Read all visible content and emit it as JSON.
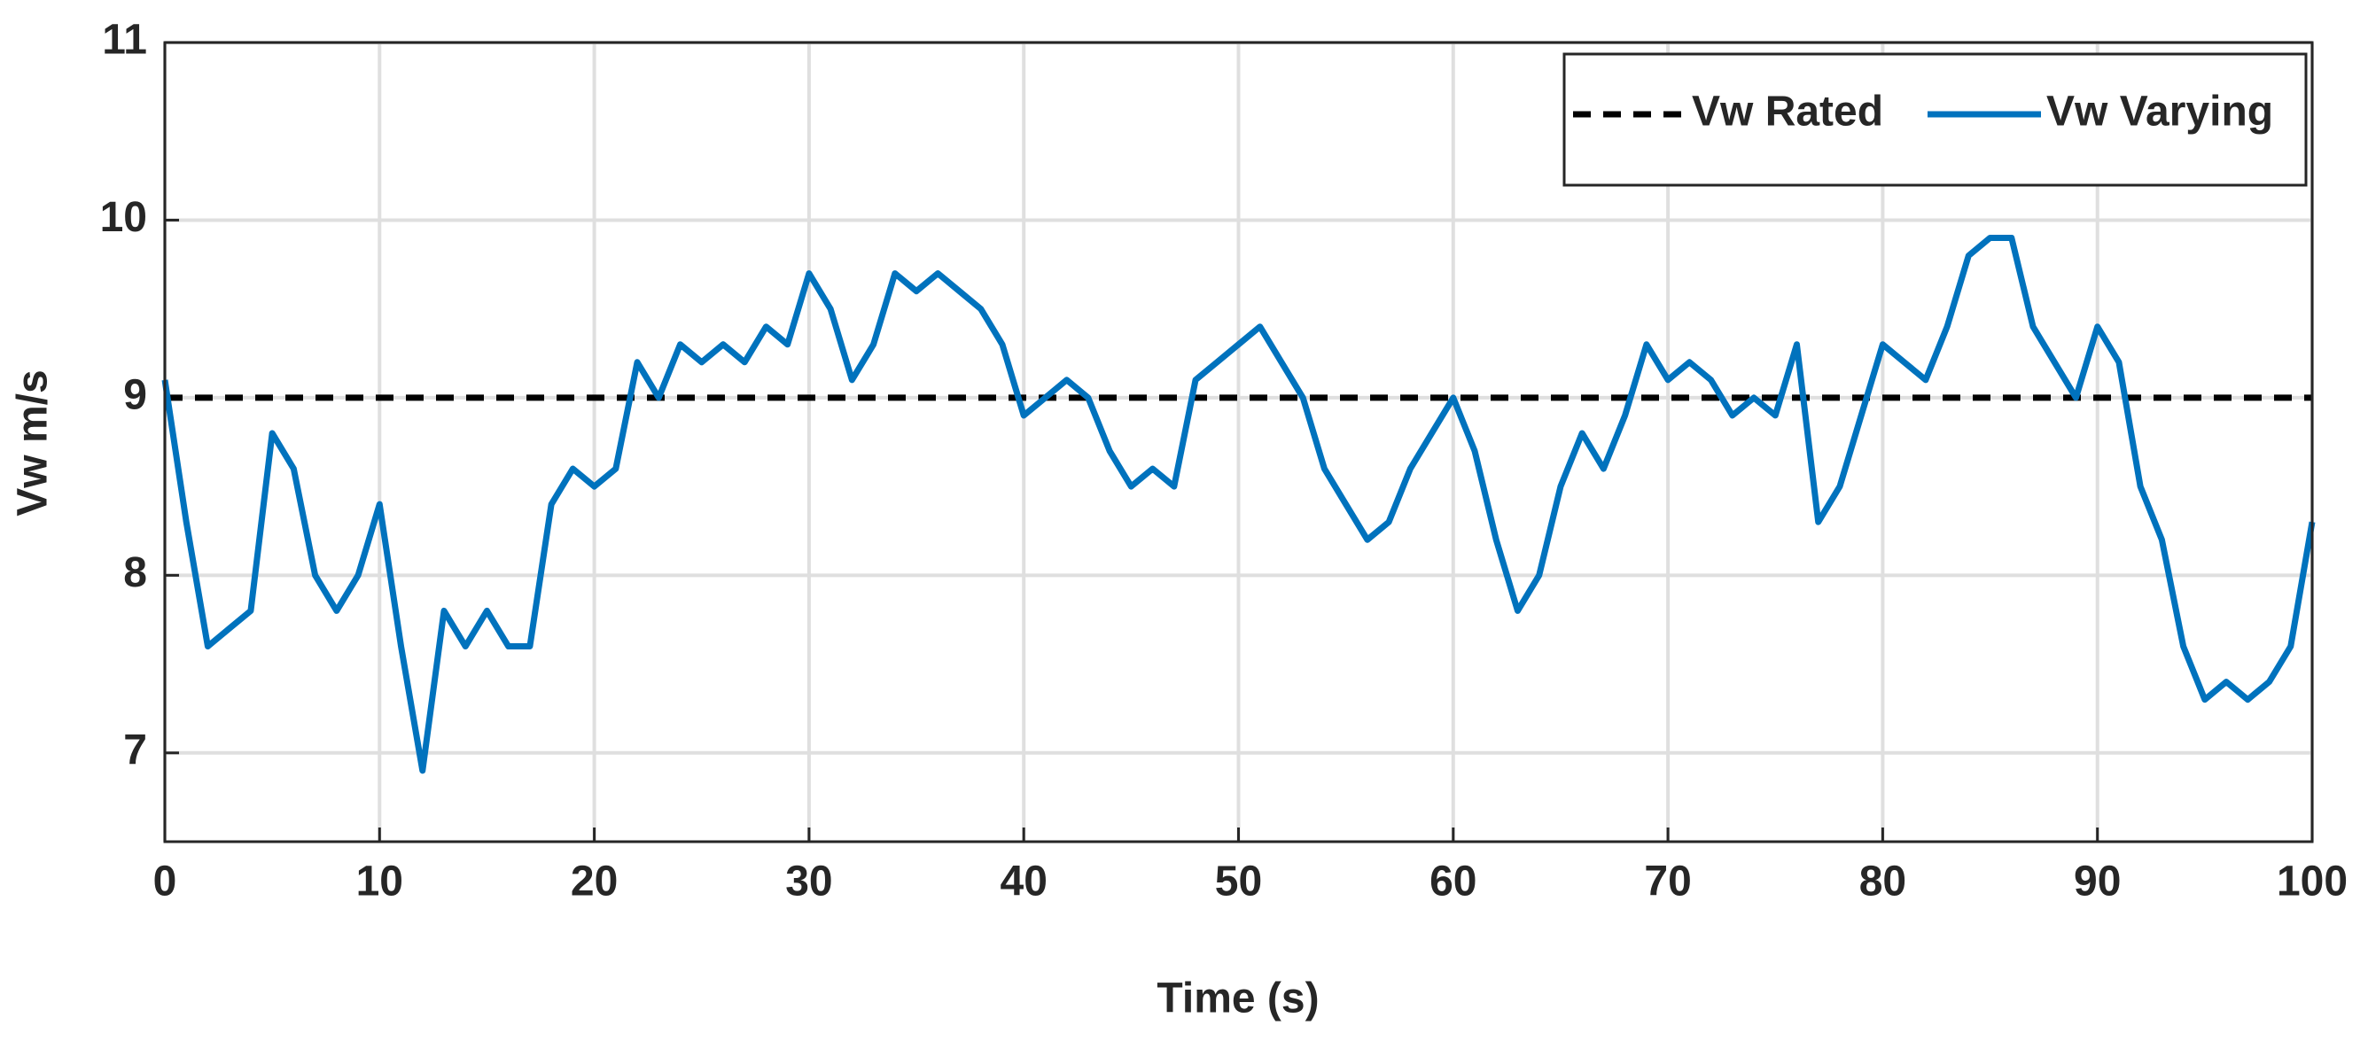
{
  "chart_data": {
    "type": "line",
    "x_label": "Time (s)",
    "y_label": "Vw m/s",
    "xlim": [
      0,
      100
    ],
    "xticks": [
      0,
      10,
      20,
      30,
      40,
      50,
      60,
      70,
      80,
      90,
      100
    ],
    "ylim": [
      6.5,
      11
    ],
    "yticks": [
      7,
      8,
      9,
      10,
      11
    ],
    "grid": true,
    "legend": "upper right",
    "series": [
      {
        "name": "Vw Rated",
        "color": "#000000",
        "dashed": true,
        "x": [
          0,
          100
        ],
        "values": [
          9,
          9
        ]
      },
      {
        "name": "Vw Varying",
        "color": "#0072bd",
        "dashed": false,
        "x": [
          0,
          1,
          2,
          3,
          4,
          5,
          6,
          7,
          8,
          9,
          10,
          11,
          12,
          13,
          14,
          15,
          16,
          17,
          18,
          19,
          20,
          21,
          22,
          23,
          24,
          25,
          26,
          27,
          28,
          29,
          30,
          31,
          32,
          33,
          34,
          35,
          36,
          37,
          38,
          39,
          40,
          41,
          42,
          43,
          44,
          45,
          46,
          47,
          48,
          49,
          50,
          51,
          52,
          53,
          54,
          55,
          56,
          57,
          58,
          59,
          60,
          61,
          62,
          63,
          64,
          65,
          66,
          67,
          68,
          69,
          70,
          71,
          72,
          73,
          74,
          75,
          76,
          77,
          78,
          79,
          80,
          81,
          82,
          83,
          84,
          85,
          86,
          87,
          88,
          89,
          90,
          91,
          92,
          93,
          94,
          95,
          96,
          97,
          98,
          99,
          100
        ],
        "values": [
          9.1,
          8.3,
          7.6,
          7.7,
          7.8,
          8.8,
          8.6,
          8.0,
          7.8,
          8.0,
          8.4,
          7.6,
          6.9,
          7.8,
          7.6,
          7.8,
          7.6,
          7.6,
          8.4,
          8.6,
          8.5,
          8.6,
          9.2,
          9.0,
          9.3,
          9.2,
          9.3,
          9.2,
          9.4,
          9.3,
          9.7,
          9.5,
          9.1,
          9.3,
          9.7,
          9.6,
          9.7,
          9.6,
          9.5,
          9.3,
          8.9,
          9.0,
          9.1,
          9.0,
          8.7,
          8.5,
          8.6,
          8.5,
          9.1,
          9.2,
          9.3,
          9.4,
          9.2,
          9.0,
          8.6,
          8.4,
          8.2,
          8.3,
          8.6,
          8.8,
          9.0,
          8.7,
          8.2,
          7.8,
          8.0,
          8.5,
          8.8,
          8.6,
          8.9,
          9.3,
          9.1,
          9.2,
          9.1,
          8.9,
          9.0,
          8.9,
          9.3,
          8.3,
          8.5,
          8.9,
          9.3,
          9.2,
          9.1,
          9.4,
          9.8,
          9.9,
          9.9,
          9.4,
          9.2,
          9.0,
          9.4,
          9.2,
          8.5,
          8.2,
          7.6,
          7.3,
          7.4,
          7.3,
          7.4,
          7.6,
          8.3
        ]
      }
    ]
  }
}
